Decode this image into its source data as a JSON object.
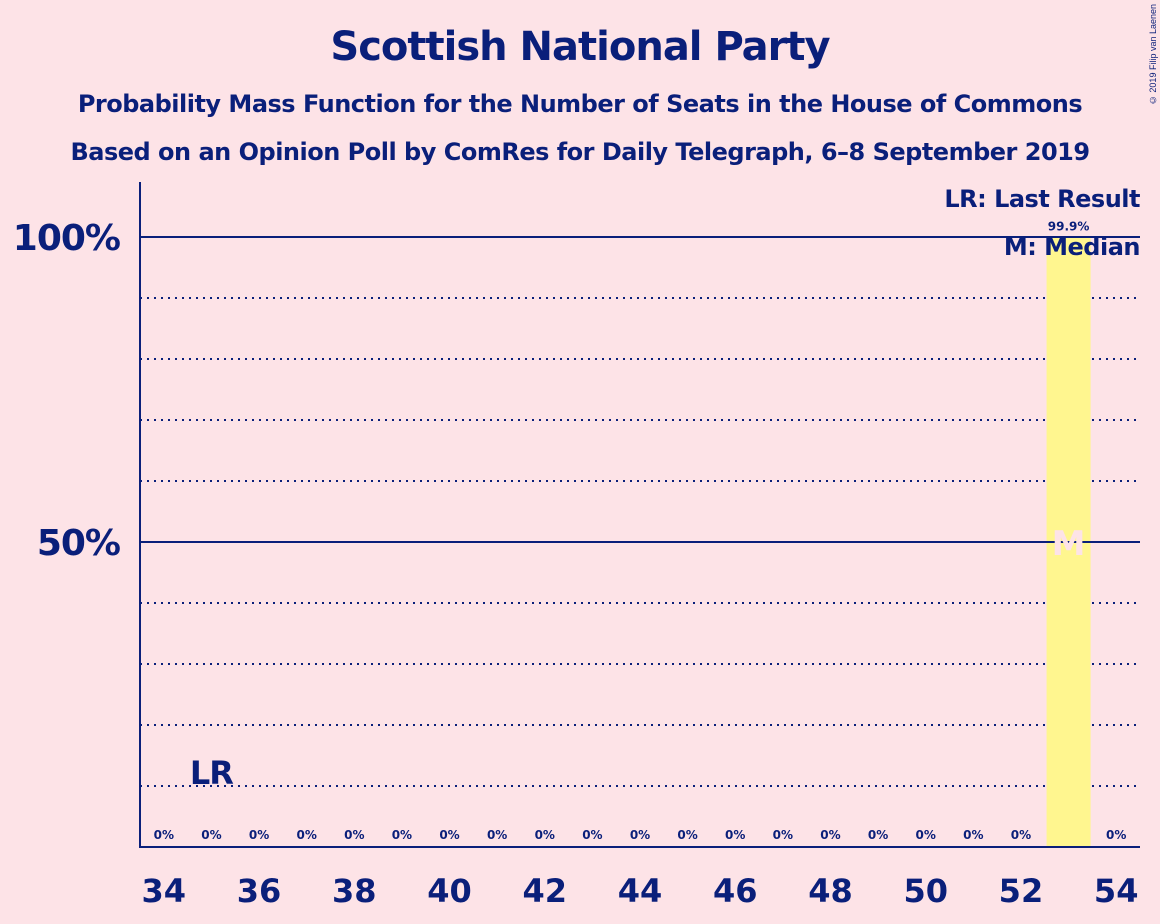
{
  "chart_data": {
    "type": "bar",
    "title": "Scottish National Party",
    "subtitle_lines": [
      "Probability Mass Function for the Number of Seats in the House of Commons",
      "Based on an Opinion Poll by ComRes for Daily Telegraph, 6–8 September 2019"
    ],
    "x": [
      34,
      35,
      36,
      37,
      38,
      39,
      40,
      41,
      42,
      43,
      44,
      45,
      46,
      47,
      48,
      49,
      50,
      51,
      52,
      53,
      54
    ],
    "values": [
      0,
      0,
      0,
      0,
      0,
      0,
      0,
      0,
      0,
      0,
      0,
      0,
      0,
      0,
      0,
      0,
      0,
      0,
      0,
      99.9,
      0
    ],
    "value_labels": [
      "0%",
      "0%",
      "0%",
      "0%",
      "0%",
      "0%",
      "0%",
      "0%",
      "0%",
      "0%",
      "0%",
      "0%",
      "0%",
      "0%",
      "0%",
      "0%",
      "0%",
      "0%",
      "0%",
      "99.9%",
      "0%"
    ],
    "x_tick_labels": [
      "34",
      "36",
      "38",
      "40",
      "42",
      "44",
      "46",
      "48",
      "50",
      "52",
      "54"
    ],
    "y_tick_labels": [
      {
        "value": 50,
        "label": "50%"
      },
      {
        "value": 100,
        "label": "100%"
      }
    ],
    "ylim": [
      0,
      100
    ],
    "xlim": [
      33.5,
      54.5
    ],
    "minor_gridlines_every": 10,
    "major_gridlines": [
      50,
      100
    ],
    "last_result": {
      "seat": 35,
      "label": "LR"
    },
    "median": {
      "seat": 53,
      "label": "M"
    },
    "legend": {
      "position": "top-right",
      "entries": [
        "LR: Last Result",
        "M: Median"
      ]
    },
    "colors": {
      "background": "#fde3e7",
      "bar": "#fff68f",
      "text": "#0a1f7a",
      "median_marker": "#fde3e7"
    },
    "xlabel": "",
    "ylabel": ""
  },
  "copyright": "© 2019 Filip van Laenen"
}
